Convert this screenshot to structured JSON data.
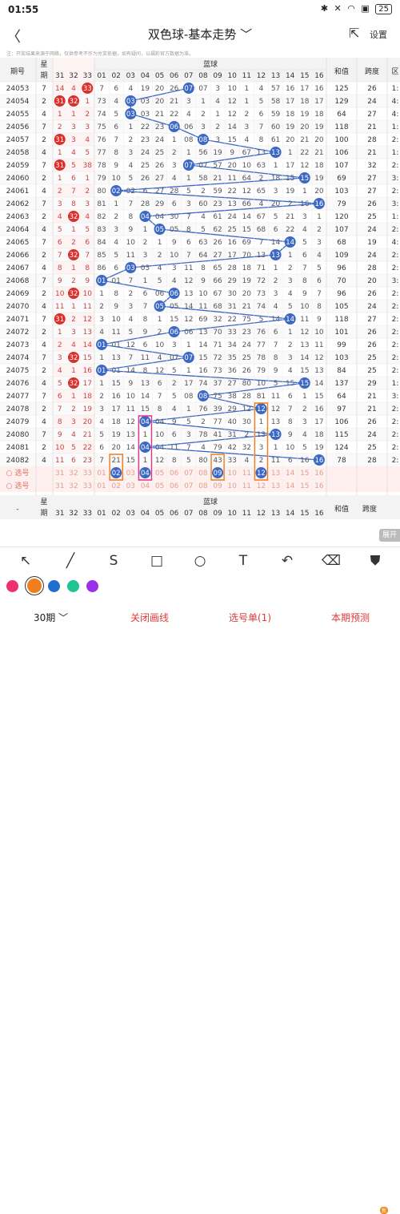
{
  "status": {
    "time": "01:55",
    "icons": "✱ ✕ ◠ ▣",
    "battery": "25"
  },
  "appbar": {
    "back": "〈",
    "title": "双色球-基本走势 ﹀",
    "share_icon": "⇱",
    "settings": "设置"
  },
  "notice": "注：开奖结果来源于网络，仅供参考不作为兑奖依据，如有疑问，以福彩官方数据为准。",
  "header": {
    "period": "期号",
    "week1": "星",
    "week2": "期",
    "red_tail": [
      "31",
      "32",
      "33"
    ],
    "blue_title": "蓝球",
    "blue_nums": [
      "01",
      "02",
      "03",
      "04",
      "05",
      "06",
      "07",
      "08",
      "09",
      "10",
      "11",
      "12",
      "13",
      "14",
      "15",
      "16"
    ],
    "sum": "和值",
    "span": "跨度",
    "region": "区"
  },
  "rows": [
    {
      "p": "24053",
      "w": "7",
      "r": [
        "14",
        "4",
        "33"
      ],
      "hit": [
        false,
        false,
        true
      ],
      "b": [
        "7",
        "6",
        "4",
        "19",
        "20",
        "26",
        "07",
        "3",
        "10",
        "1",
        "4",
        "57",
        "16",
        "17",
        "16"
      ],
      "bb": 7,
      "sum": "125",
      "span": "26",
      "reg": "1:"
    },
    {
      "p": "24054",
      "w": "2",
      "r": [
        "31",
        "32",
        "1"
      ],
      "hit": [
        true,
        true,
        false
      ],
      "b": [
        "73",
        "4",
        "03",
        "20",
        "21",
        "3",
        "1",
        "4",
        "12",
        "1",
        "5",
        "58",
        "17",
        "18",
        "17"
      ],
      "bb": 3,
      "sum": "129",
      "span": "24",
      "reg": "4:"
    },
    {
      "p": "24055",
      "w": "4",
      "r": [
        "1",
        "1",
        "2"
      ],
      "hit": [
        false,
        false,
        false
      ],
      "b": [
        "74",
        "5",
        "03",
        "21",
        "22",
        "4",
        "2",
        "1",
        "12",
        "2",
        "6",
        "59",
        "18",
        "19",
        "18"
      ],
      "bb": 3,
      "sum": "64",
      "span": "27",
      "reg": "4:"
    },
    {
      "p": "24056",
      "w": "7",
      "r": [
        "2",
        "3",
        "3"
      ],
      "hit": [
        false,
        false,
        false
      ],
      "b": [
        "75",
        "6",
        "1",
        "22",
        "23",
        "06",
        "3",
        "2",
        "14",
        "3",
        "7",
        "60",
        "19",
        "20",
        "19"
      ],
      "bb": 6,
      "sum": "118",
      "span": "21",
      "reg": "1:"
    },
    {
      "p": "24057",
      "w": "2",
      "r": [
        "31",
        "3",
        "4"
      ],
      "hit": [
        true,
        false,
        false
      ],
      "b": [
        "76",
        "7",
        "2",
        "23",
        "24",
        "1",
        "08",
        "3",
        "15",
        "4",
        "8",
        "61",
        "20",
        "21",
        "20"
      ],
      "bb": 8,
      "sum": "100",
      "span": "28",
      "reg": "2:"
    },
    {
      "p": "24058",
      "w": "4",
      "r": [
        "1",
        "4",
        "5"
      ],
      "hit": [
        false,
        false,
        false
      ],
      "b": [
        "77",
        "8",
        "3",
        "24",
        "25",
        "2",
        "1",
        "56",
        "19",
        "9",
        "67",
        "13",
        "1",
        "22",
        "21"
      ],
      "bb": 13,
      "sum": "106",
      "span": "21",
      "reg": "1:"
    },
    {
      "p": "24059",
      "w": "7",
      "r": [
        "31",
        "5",
        "38"
      ],
      "hit": [
        true,
        false,
        false
      ],
      "b": [
        "78",
        "9",
        "4",
        "25",
        "26",
        "3",
        "07",
        "57",
        "20",
        "10",
        "63",
        "1",
        "17",
        "12",
        "18"
      ],
      "bb": 7,
      "sum": "107",
      "span": "32",
      "reg": "2:"
    },
    {
      "p": "24060",
      "w": "2",
      "r": [
        "1",
        "6",
        "1"
      ],
      "hit": [
        false,
        false,
        false
      ],
      "b": [
        "79",
        "10",
        "5",
        "26",
        "27",
        "4",
        "1",
        "58",
        "21",
        "11",
        "64",
        "2",
        "18",
        "15",
        "19"
      ],
      "bb": 15,
      "sum": "69",
      "span": "27",
      "reg": "3:"
    },
    {
      "p": "24061",
      "w": "4",
      "r": [
        "2",
        "7",
        "2"
      ],
      "hit": [
        false,
        false,
        false
      ],
      "b": [
        "80",
        "02",
        "6",
        "27",
        "28",
        "5",
        "2",
        "59",
        "22",
        "12",
        "65",
        "3",
        "19",
        "1",
        "20"
      ],
      "bb": 2,
      "sum": "103",
      "span": "27",
      "reg": "2:"
    },
    {
      "p": "24062",
      "w": "7",
      "r": [
        "3",
        "8",
        "3"
      ],
      "hit": [
        false,
        false,
        false
      ],
      "b": [
        "81",
        "1",
        "7",
        "28",
        "29",
        "6",
        "3",
        "60",
        "23",
        "13",
        "66",
        "4",
        "20",
        "2",
        "16"
      ],
      "bb": 16,
      "sum": "79",
      "span": "26",
      "reg": "3:"
    },
    {
      "p": "24063",
      "w": "2",
      "r": [
        "4",
        "32",
        "4"
      ],
      "hit": [
        false,
        true,
        false
      ],
      "b": [
        "82",
        "2",
        "8",
        "04",
        "30",
        "7",
        "4",
        "61",
        "24",
        "14",
        "67",
        "5",
        "21",
        "3",
        "1"
      ],
      "bb": 4,
      "sum": "120",
      "span": "25",
      "reg": "1:"
    },
    {
      "p": "24064",
      "w": "4",
      "r": [
        "5",
        "1",
        "5"
      ],
      "hit": [
        false,
        false,
        false
      ],
      "b": [
        "83",
        "3",
        "9",
        "1",
        "05",
        "8",
        "5",
        "62",
        "25",
        "15",
        "68",
        "6",
        "22",
        "4",
        "2"
      ],
      "bb": 5,
      "sum": "107",
      "span": "24",
      "reg": "2:"
    },
    {
      "p": "24065",
      "w": "7",
      "r": [
        "6",
        "2",
        "6"
      ],
      "hit": [
        false,
        false,
        false
      ],
      "b": [
        "84",
        "4",
        "10",
        "2",
        "1",
        "9",
        "6",
        "63",
        "26",
        "16",
        "69",
        "7",
        "14",
        "5",
        "3"
      ],
      "bb": 14,
      "sum": "68",
      "span": "19",
      "reg": "4:"
    },
    {
      "p": "24066",
      "w": "2",
      "r": [
        "7",
        "32",
        "7"
      ],
      "hit": [
        false,
        true,
        false
      ],
      "b": [
        "85",
        "5",
        "11",
        "3",
        "2",
        "10",
        "7",
        "64",
        "27",
        "17",
        "70",
        "13",
        "1",
        "6",
        "4"
      ],
      "bb": 13,
      "sum": "109",
      "span": "24",
      "reg": "2:"
    },
    {
      "p": "24067",
      "w": "4",
      "r": [
        "8",
        "1",
        "8"
      ],
      "hit": [
        false,
        false,
        false
      ],
      "b": [
        "86",
        "6",
        "03",
        "4",
        "3",
        "11",
        "8",
        "65",
        "28",
        "18",
        "71",
        "1",
        "2",
        "7",
        "5"
      ],
      "bb": 3,
      "sum": "96",
      "span": "28",
      "reg": "2:"
    },
    {
      "p": "24068",
      "w": "7",
      "r": [
        "9",
        "2",
        "9"
      ],
      "hit": [
        false,
        false,
        false
      ],
      "b": [
        "01",
        "7",
        "1",
        "5",
        "4",
        "12",
        "9",
        "66",
        "29",
        "19",
        "72",
        "2",
        "3",
        "8",
        "6"
      ],
      "bb": 1,
      "sum": "70",
      "span": "20",
      "reg": "3:"
    },
    {
      "p": "24069",
      "w": "2",
      "r": [
        "10",
        "32",
        "10"
      ],
      "hit": [
        false,
        true,
        false
      ],
      "b": [
        "1",
        "8",
        "2",
        "6",
        "06",
        "13",
        "10",
        "67",
        "30",
        "20",
        "73",
        "3",
        "4",
        "9",
        "7"
      ],
      "bb": 6,
      "sum": "96",
      "span": "26",
      "reg": "2:"
    },
    {
      "p": "24070",
      "w": "4",
      "r": [
        "11",
        "1",
        "11"
      ],
      "hit": [
        false,
        false,
        false
      ],
      "b": [
        "2",
        "9",
        "3",
        "7",
        "05",
        "14",
        "11",
        "68",
        "31",
        "21",
        "74",
        "4",
        "5",
        "10",
        "8"
      ],
      "bb": 5,
      "sum": "105",
      "span": "24",
      "reg": "2:"
    },
    {
      "p": "24071",
      "w": "7",
      "r": [
        "31",
        "2",
        "12"
      ],
      "hit": [
        true,
        false,
        false
      ],
      "b": [
        "3",
        "10",
        "4",
        "8",
        "1",
        "15",
        "12",
        "69",
        "32",
        "22",
        "75",
        "5",
        "14",
        "11",
        "9"
      ],
      "bb": 14,
      "sum": "118",
      "span": "27",
      "reg": "2:"
    },
    {
      "p": "24072",
      "w": "2",
      "r": [
        "1",
        "3",
        "13"
      ],
      "hit": [
        false,
        false,
        false
      ],
      "b": [
        "4",
        "11",
        "5",
        "9",
        "2",
        "06",
        "13",
        "70",
        "33",
        "23",
        "76",
        "6",
        "1",
        "12",
        "10"
      ],
      "bb": 6,
      "sum": "101",
      "span": "26",
      "reg": "2:"
    },
    {
      "p": "24073",
      "w": "4",
      "r": [
        "2",
        "4",
        "14"
      ],
      "hit": [
        false,
        false,
        false
      ],
      "b": [
        "01",
        "12",
        "6",
        "10",
        "3",
        "1",
        "14",
        "71",
        "34",
        "24",
        "77",
        "7",
        "2",
        "13",
        "11"
      ],
      "bb": 1,
      "sum": "99",
      "span": "26",
      "reg": "2:"
    },
    {
      "p": "24074",
      "w": "7",
      "r": [
        "3",
        "32",
        "15"
      ],
      "hit": [
        false,
        true,
        false
      ],
      "b": [
        "1",
        "13",
        "7",
        "11",
        "4",
        "07",
        "15",
        "72",
        "35",
        "25",
        "78",
        "8",
        "3",
        "14",
        "12"
      ],
      "bb": 7,
      "sum": "103",
      "span": "25",
      "reg": "2:"
    },
    {
      "p": "24075",
      "w": "2",
      "r": [
        "4",
        "1",
        "16"
      ],
      "hit": [
        false,
        false,
        false
      ],
      "b": [
        "01",
        "14",
        "8",
        "12",
        "5",
        "1",
        "16",
        "73",
        "36",
        "26",
        "79",
        "9",
        "4",
        "15",
        "13"
      ],
      "bb": 1,
      "sum": "84",
      "span": "25",
      "reg": "2:"
    },
    {
      "p": "24076",
      "w": "4",
      "r": [
        "5",
        "32",
        "17"
      ],
      "hit": [
        false,
        true,
        false
      ],
      "b": [
        "1",
        "15",
        "9",
        "13",
        "6",
        "2",
        "17",
        "74",
        "37",
        "27",
        "80",
        "10",
        "5",
        "15",
        "14"
      ],
      "bb": 15,
      "sum": "137",
      "span": "29",
      "reg": "1:"
    },
    {
      "p": "24077",
      "w": "7",
      "r": [
        "6",
        "1",
        "18"
      ],
      "hit": [
        false,
        false,
        false
      ],
      "b": [
        "2",
        "16",
        "10",
        "14",
        "7",
        "5",
        "08",
        "75",
        "38",
        "28",
        "81",
        "11",
        "6",
        "1",
        "15"
      ],
      "bb": 8,
      "sum": "64",
      "span": "21",
      "reg": "3:"
    },
    {
      "p": "24078",
      "w": "2",
      "r": [
        "7",
        "2",
        "19"
      ],
      "hit": [
        false,
        false,
        false
      ],
      "b": [
        "3",
        "17",
        "11",
        "15",
        "8",
        "4",
        "1",
        "76",
        "39",
        "29",
        "12",
        "12",
        "7",
        "2",
        "16"
      ],
      "bb": 12,
      "sum": "97",
      "span": "21",
      "reg": "2:"
    },
    {
      "p": "24079",
      "w": "4",
      "r": [
        "8",
        "3",
        "20"
      ],
      "hit": [
        false,
        false,
        false
      ],
      "b": [
        "4",
        "18",
        "12",
        "04",
        "9",
        "5",
        "2",
        "77",
        "40",
        "30",
        "1",
        "13",
        "8",
        "3",
        "17"
      ],
      "bb": 4,
      "sum": "106",
      "span": "26",
      "reg": "2:"
    },
    {
      "p": "24080",
      "w": "7",
      "r": [
        "9",
        "4",
        "21"
      ],
      "hit": [
        false,
        false,
        false
      ],
      "b": [
        "5",
        "19",
        "13",
        "1",
        "10",
        "6",
        "3",
        "78",
        "41",
        "31",
        "2",
        "13",
        "9",
        "4",
        "18"
      ],
      "bb": 13,
      "sum": "115",
      "span": "24",
      "reg": "2:"
    },
    {
      "p": "24081",
      "w": "2",
      "r": [
        "10",
        "5",
        "22"
      ],
      "hit": [
        false,
        false,
        false
      ],
      "b": [
        "6",
        "20",
        "14",
        "04",
        "11",
        "7",
        "4",
        "79",
        "42",
        "32",
        "3",
        "1",
        "10",
        "5",
        "19"
      ],
      "bb": 4,
      "sum": "124",
      "span": "25",
      "reg": "2:"
    },
    {
      "p": "24082",
      "w": "4",
      "r": [
        "11",
        "6",
        "23"
      ],
      "hit": [
        false,
        false,
        false
      ],
      "b": [
        "7",
        "21",
        "15",
        "1",
        "12",
        "8",
        "5",
        "80",
        "43",
        "33",
        "4",
        "2",
        "11",
        "6",
        "16"
      ],
      "bb": 16,
      "sum": "78",
      "span": "28",
      "reg": "2:"
    }
  ],
  "pick_label": "选号",
  "pick_tail": [
    "31",
    "32",
    "33"
  ],
  "pick_selected": [
    2,
    4,
    9,
    12
  ],
  "footer": {
    "dash": "-",
    "week1": "星",
    "week2": "期",
    "blue_title": "蓝球",
    "sum": "和值",
    "span": "跨度",
    "expand": "展开"
  },
  "tools": [
    "↖",
    "╱",
    "S",
    "□",
    "○",
    "T",
    "↶",
    "⌫",
    "⛊"
  ],
  "colors": [
    "#f0306e",
    "#f07d1e",
    "#1e6fd0",
    "#20c490",
    "#9a30e8"
  ],
  "selected_color": 1,
  "bottom": {
    "periods": "30期 ﹀",
    "close_lines": "关闭画线",
    "pick_mode": "选号单(1)",
    "predict": "本期预测",
    "badge": "新"
  },
  "line_color": "#3c68c4",
  "ball_color": "#3c68c4",
  "red_ball_color": "#d9302c"
}
